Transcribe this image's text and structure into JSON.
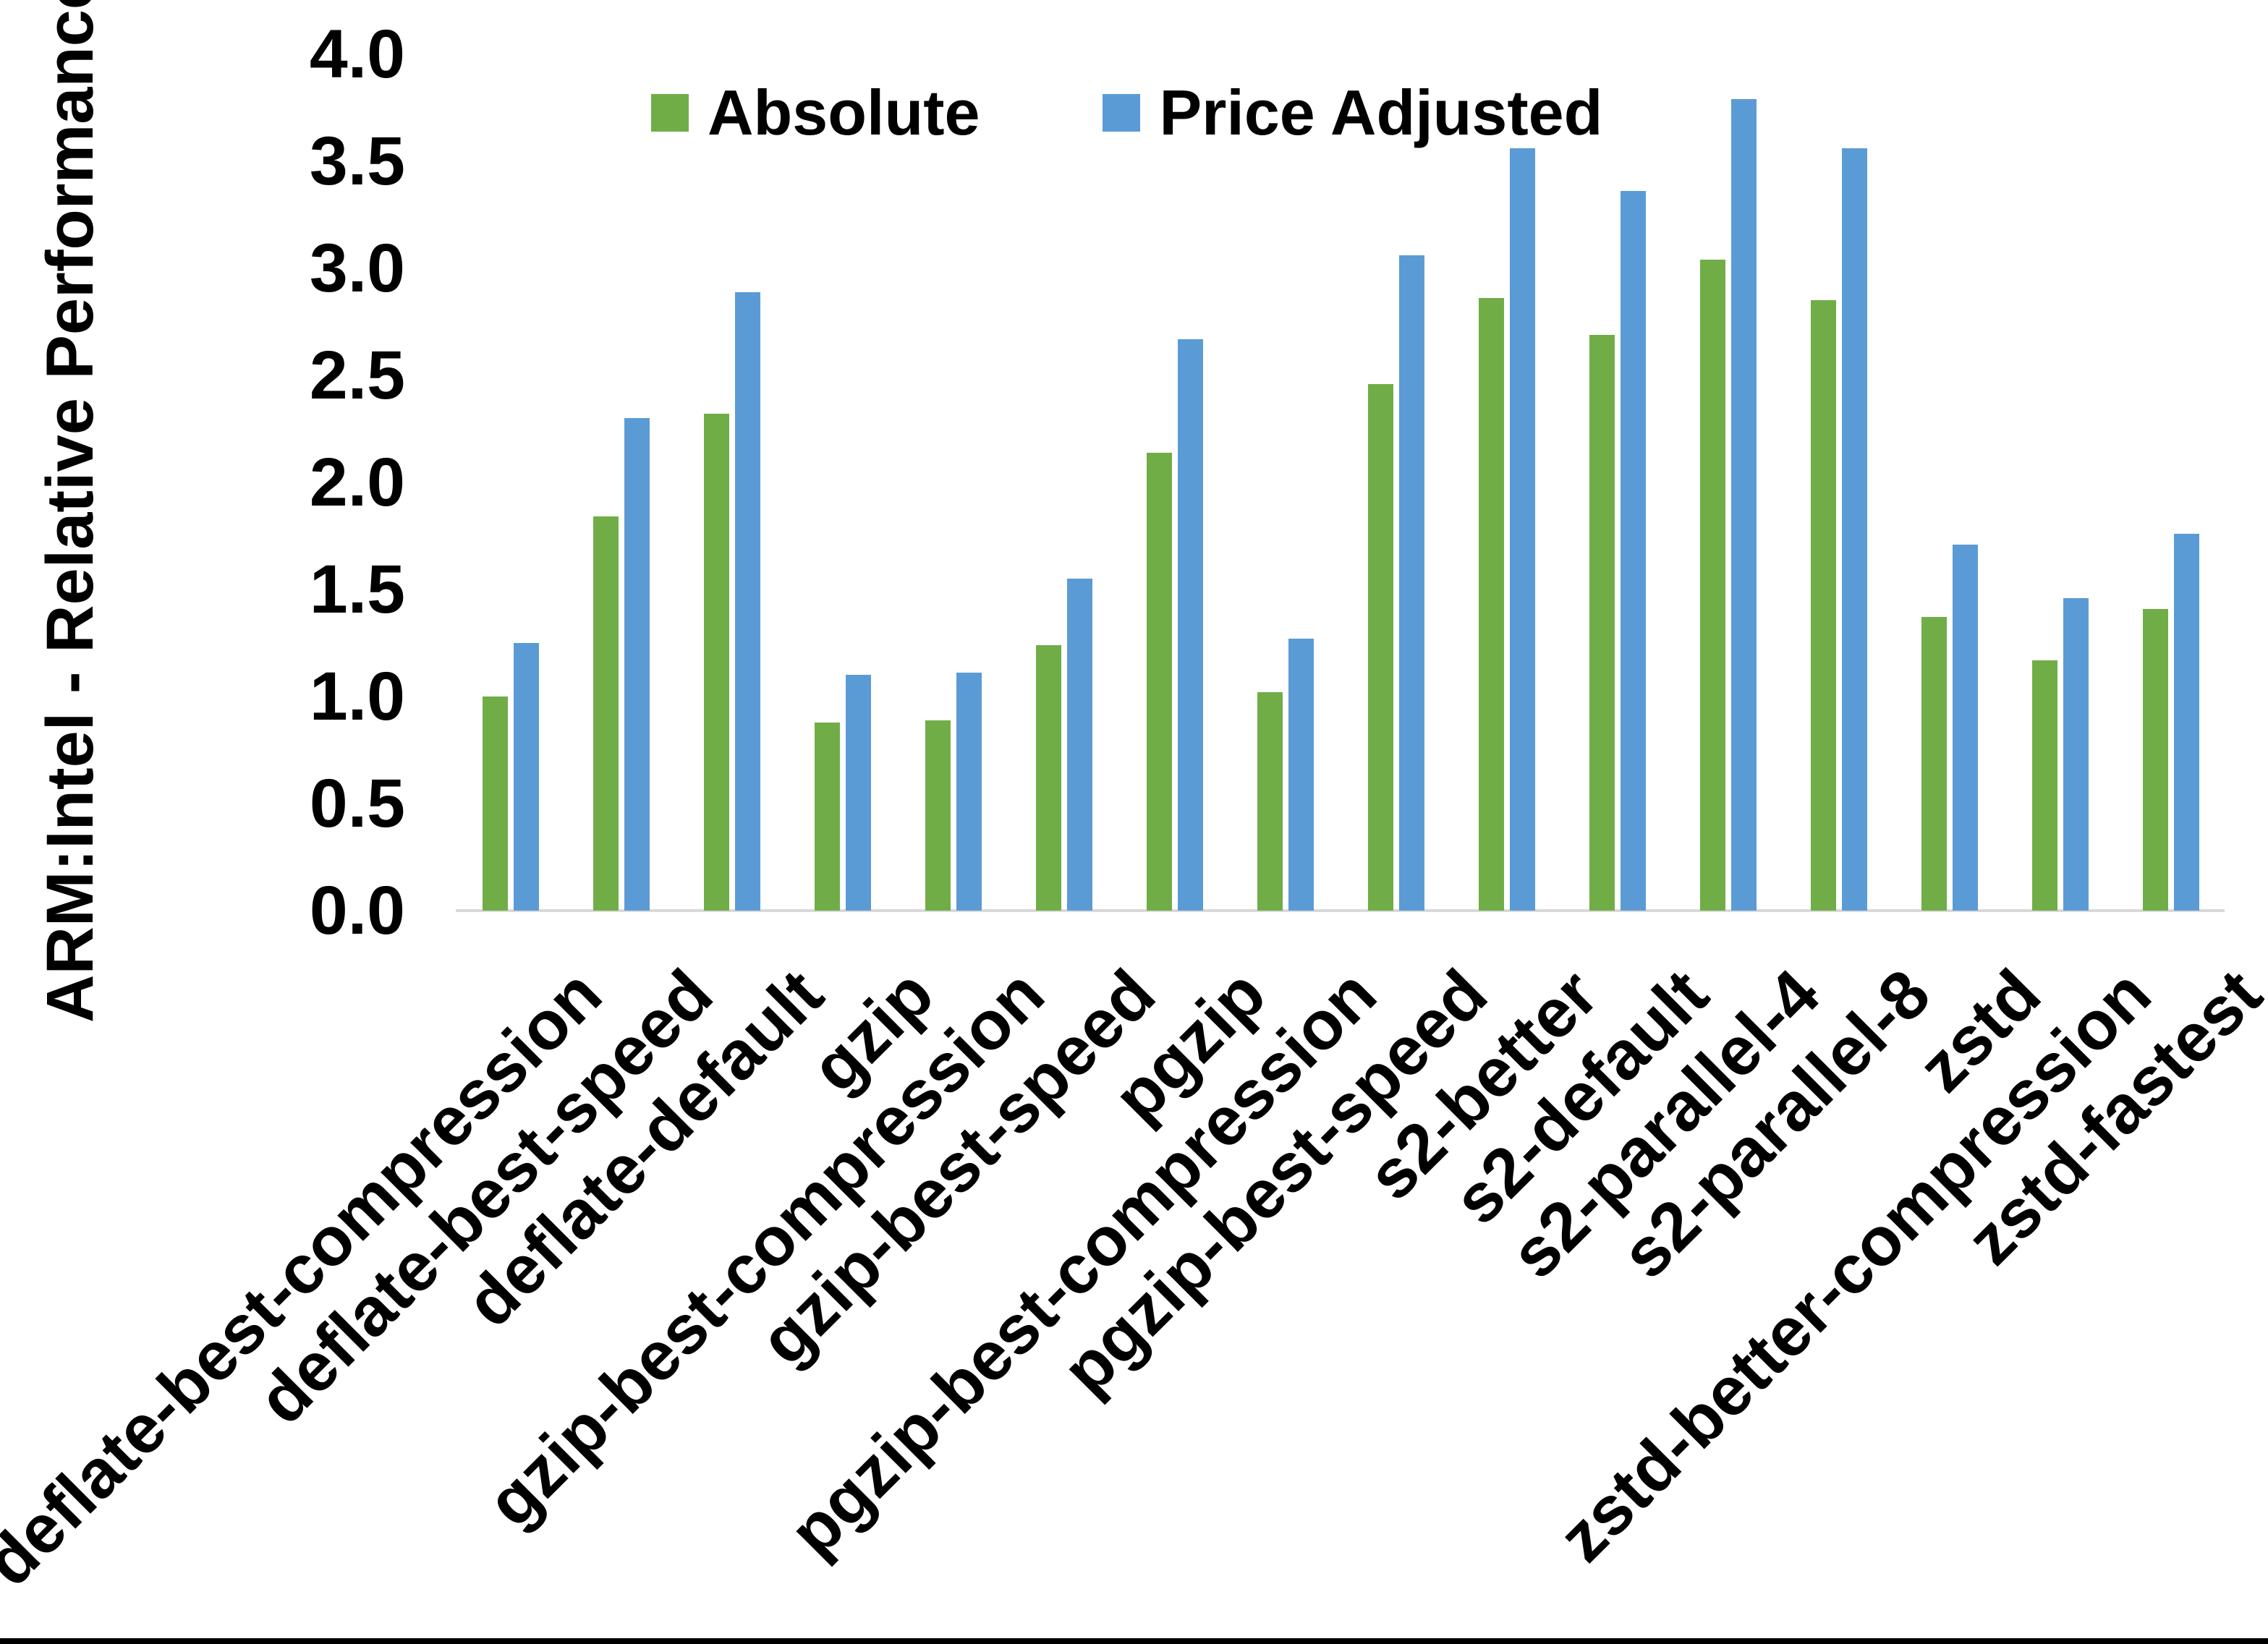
{
  "chart_data": {
    "type": "bar",
    "title": "",
    "xlabel": "",
    "ylabel": "ARM:Intel - Relative Performance",
    "ylim": [
      0.0,
      4.0
    ],
    "ytick_step": 0.5,
    "yticks": [
      "0.0",
      "0.5",
      "1.0",
      "1.5",
      "2.0",
      "2.5",
      "3.0",
      "3.5",
      "4.0"
    ],
    "grid": false,
    "legend_position": "top-center",
    "categories": [
      "deflate-best-compression",
      "deflate-best-speed",
      "deflate-default",
      "gzip",
      "gzip-best-compression",
      "gzip-best-speed",
      "pgzip",
      "pgzip-best-compression",
      "pgzip-best-speed",
      "s2-better",
      "s2-default",
      "s2-parallel-4",
      "s2-parallel-8",
      "zstd",
      "zstd-better-compression",
      "zstd-fastest"
    ],
    "series": [
      {
        "name": "Absolute",
        "color": "#70AD47",
        "values": [
          1.0,
          1.84,
          2.32,
          0.88,
          0.89,
          1.24,
          2.14,
          1.02,
          2.46,
          2.86,
          2.69,
          3.04,
          2.85,
          1.37,
          1.17,
          1.41
        ]
      },
      {
        "name": "Price Adjusted",
        "color": "#5B9BD5",
        "values": [
          1.25,
          2.3,
          2.89,
          1.1,
          1.11,
          1.55,
          2.67,
          1.27,
          3.06,
          3.56,
          3.36,
          3.79,
          3.56,
          1.71,
          1.46,
          1.76
        ]
      }
    ]
  },
  "colors": {
    "axis_line": "#D9D9D9",
    "text": "#000000",
    "background": "#FFFFFF",
    "bottom_bar": "#000000"
  }
}
